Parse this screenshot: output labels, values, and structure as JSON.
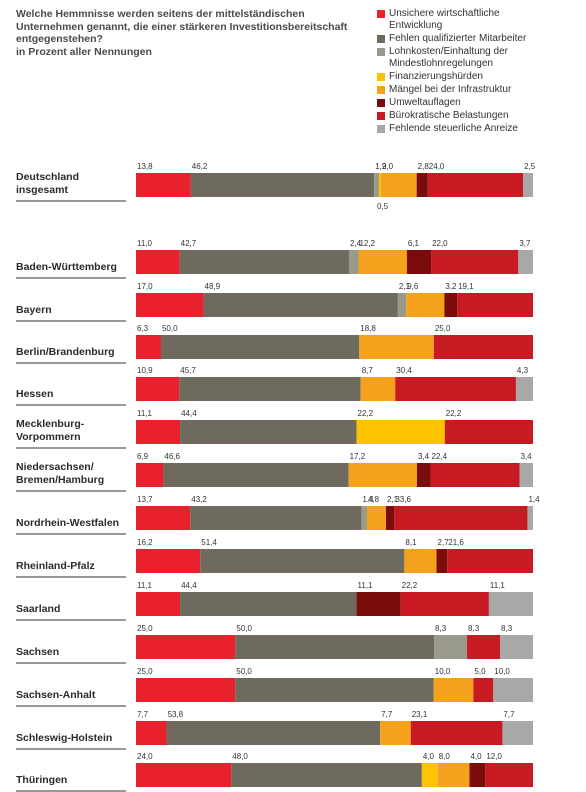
{
  "title": {
    "lines": [
      "Welche Hemmnisse werden seitens der mittelständischen",
      "Unternehmen genannt, die einer stärkeren Investitionsbereitschaft",
      "entgegenstehen?"
    ],
    "subtitle": "in Prozent aller Nennungen"
  },
  "chart_data": {
    "type": "bar",
    "orientation": "horizontal",
    "stacked": true,
    "normalized": true,
    "unit": "%",
    "legend_position": "top-right",
    "grid": false,
    "series": [
      {
        "name": "Unsichere wirtschaftliche Entwicklung",
        "legend_lines": [
          "Unsichere wirtschaftliche",
          "Entwicklung"
        ],
        "color": "#e8212d"
      },
      {
        "name": "Fehlen qualifizierter Mitarbeiter",
        "legend_lines": [
          "Fehlen qualifizierter Mitarbeiter"
        ],
        "color": "#6e6a5e"
      },
      {
        "name": "Lohnkosten/Einhaltung der Mindestlohnregelungen",
        "legend_lines": [
          "Lohnkosten/Einhaltung der",
          "Mindestlohnregelungen"
        ],
        "color": "#9a9a8c"
      },
      {
        "name": "Finanzierungshürden",
        "legend_lines": [
          "Finanzierungshürden"
        ],
        "color": "#fcc400"
      },
      {
        "name": "Mängel bei der Infrastruktur",
        "legend_lines": [
          "Mängel bei der Infrastruktur"
        ],
        "color": "#f4a11d"
      },
      {
        "name": "Umweltauflagen",
        "legend_lines": [
          "Umweltauflagen"
        ],
        "color": "#7a0c0c"
      },
      {
        "name": "Bürokratische Belastungen",
        "legend_lines": [
          "Bürokratische Belastungen"
        ],
        "color": "#c81a23"
      },
      {
        "name": "Fehlende steuerliche Anreize",
        "legend_lines": [
          "Fehlende steuerliche Anreize"
        ],
        "color": "#a8a8a8"
      }
    ],
    "categories": [
      {
        "label": [
          "Deutschland",
          "insgesamt"
        ],
        "values": [
          13.8,
          46.2,
          1.2,
          0.5,
          9.0,
          2.8,
          24.0,
          2.5
        ],
        "labels": [
          "13,8",
          "46,2",
          "1,2",
          "0,5",
          "9,0",
          "2,8",
          "24,0",
          "2,5"
        ]
      },
      {
        "label": [
          "Baden-Württemberg"
        ],
        "values": [
          11.0,
          42.7,
          2.4,
          0,
          12.2,
          6.1,
          22.0,
          3.7
        ],
        "labels": [
          "11,0",
          "42,7",
          "2,4",
          "",
          "12,2",
          "6,1",
          "22,0",
          "3,7"
        ]
      },
      {
        "label": [
          "Bayern"
        ],
        "values": [
          17.0,
          48.9,
          2.1,
          0,
          9.6,
          3.2,
          19.1,
          0
        ],
        "labels": [
          "17,0",
          "48,9",
          "2,1",
          "",
          "9,6",
          "3,2",
          "19,1",
          ""
        ]
      },
      {
        "label": [
          "Berlin/Brandenburg"
        ],
        "values": [
          6.3,
          50.0,
          0,
          0,
          18.8,
          0,
          25.0,
          0
        ],
        "labels": [
          "6,3",
          "50,0",
          "",
          "",
          "18,8",
          "",
          "25,0",
          ""
        ]
      },
      {
        "label": [
          "Hessen"
        ],
        "values": [
          10.9,
          45.7,
          0,
          0,
          8.7,
          0,
          30.4,
          4.3
        ],
        "labels": [
          "10,9",
          "45,7",
          "",
          "",
          "8,7",
          "",
          "30,4",
          "4,3"
        ]
      },
      {
        "label": [
          "Mecklenburg-",
          "Vorpommern"
        ],
        "values": [
          11.1,
          44.4,
          0,
          22.2,
          0,
          0,
          22.2,
          0
        ],
        "labels": [
          "11,1",
          "44,4",
          "",
          "22,2",
          "",
          "",
          "22,2",
          ""
        ]
      },
      {
        "label": [
          "Niedersachsen/",
          "Bremen/Hamburg"
        ],
        "values": [
          6.9,
          46.6,
          0,
          0,
          17.2,
          3.4,
          22.4,
          3.4
        ],
        "labels": [
          "6,9",
          "46,6",
          "",
          "",
          "17,2",
          "3,4",
          "22,4",
          "3,4"
        ]
      },
      {
        "label": [
          "Nordrhein-Westfalen"
        ],
        "values": [
          13.7,
          43.2,
          1.4,
          0,
          4.8,
          2.1,
          33.6,
          1.4
        ],
        "labels": [
          "13,7",
          "43,2",
          "1,4",
          "",
          "4,8",
          "2,1",
          "33,6",
          "1,4"
        ]
      },
      {
        "label": [
          "Rheinland-Pfalz"
        ],
        "values": [
          16.2,
          51.4,
          0,
          0,
          8.1,
          2.7,
          21.6,
          0
        ],
        "labels": [
          "16,2",
          "51,4",
          "",
          "",
          "8,1",
          "2,7",
          "21,6",
          ""
        ]
      },
      {
        "label": [
          "Saarland"
        ],
        "values": [
          11.1,
          44.4,
          0,
          0,
          0,
          11.1,
          22.2,
          11.1
        ],
        "labels": [
          "11,1",
          "44,4",
          "",
          "",
          "",
          "11,1",
          "22,2",
          "11,1"
        ]
      },
      {
        "label": [
          "Sachsen"
        ],
        "values": [
          25.0,
          50.0,
          8.3,
          0,
          0,
          0,
          8.3,
          8.3
        ],
        "labels": [
          "25,0",
          "50,0",
          "8,3",
          "",
          "",
          "",
          "8,3",
          "8,3"
        ]
      },
      {
        "label": [
          "Sachsen-Anhalt"
        ],
        "values": [
          25.0,
          50.0,
          0,
          0,
          10.0,
          0,
          5.0,
          10.0
        ],
        "labels": [
          "25,0",
          "50,0",
          "",
          "",
          "10,0",
          "",
          "5,0",
          "10,0"
        ]
      },
      {
        "label": [
          "Schleswig-Holstein"
        ],
        "values": [
          7.7,
          53.8,
          0,
          0,
          7.7,
          0,
          23.1,
          7.7
        ],
        "labels": [
          "7,7",
          "53,8",
          "",
          "",
          "7,7",
          "",
          "23,1",
          "7,7"
        ]
      },
      {
        "label": [
          "Thüringen"
        ],
        "values": [
          24.0,
          48.0,
          0,
          4.0,
          8.0,
          4.0,
          12.0,
          0
        ],
        "labels": [
          "24,0",
          "48,0",
          "",
          "4,0",
          "8,0",
          "4,0",
          "12,0",
          ""
        ]
      }
    ],
    "below_bar_labels": [
      {
        "category": 0,
        "series": 3,
        "text": "0,5"
      }
    ]
  }
}
